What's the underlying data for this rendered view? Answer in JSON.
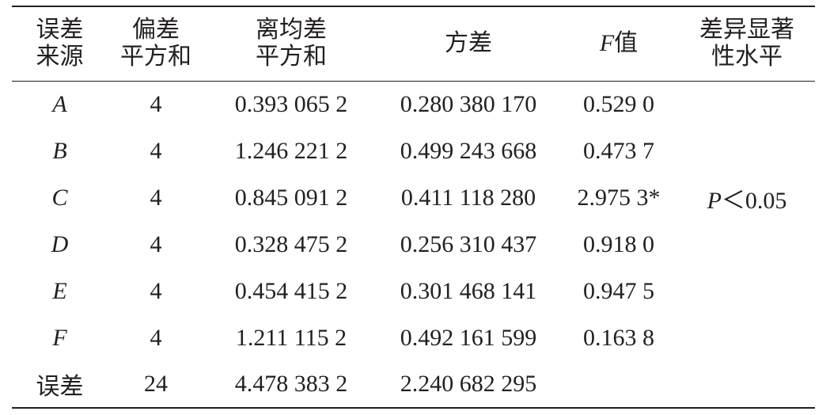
{
  "table": {
    "header": [
      [
        "误差",
        "来源"
      ],
      [
        "偏差",
        "平方和"
      ],
      [
        "离均差",
        "平方和"
      ],
      [
        "方差"
      ],
      {
        "var": "F",
        "text": "值"
      },
      [
        "差异显著",
        "性水平"
      ]
    ],
    "rows": [
      [
        "A",
        "4",
        "0.393 065 2",
        "0.280 380 170",
        "0.529 0"
      ],
      [
        "B",
        "4",
        "1.246 221 2",
        "0.499 243 668",
        "0.473 7"
      ],
      [
        "C",
        "4",
        "0.845 091 2",
        "0.411 118 280",
        "2.975 3*"
      ],
      [
        "D",
        "4",
        "0.328 475 2",
        "0.256 310 437",
        "0.918 0"
      ],
      [
        "E",
        "4",
        "0.454 415 2",
        "0.301 468 141",
        "0.947 5"
      ],
      [
        "F",
        "4",
        "1.211 115 2",
        "0.492 161 599",
        "0.163 8"
      ],
      [
        "误差",
        "24",
        "4.478 383 2",
        "2.240 682 295"
      ]
    ],
    "significance": {
      "row": 2,
      "var": "P",
      "text": "＜0.05"
    }
  }
}
